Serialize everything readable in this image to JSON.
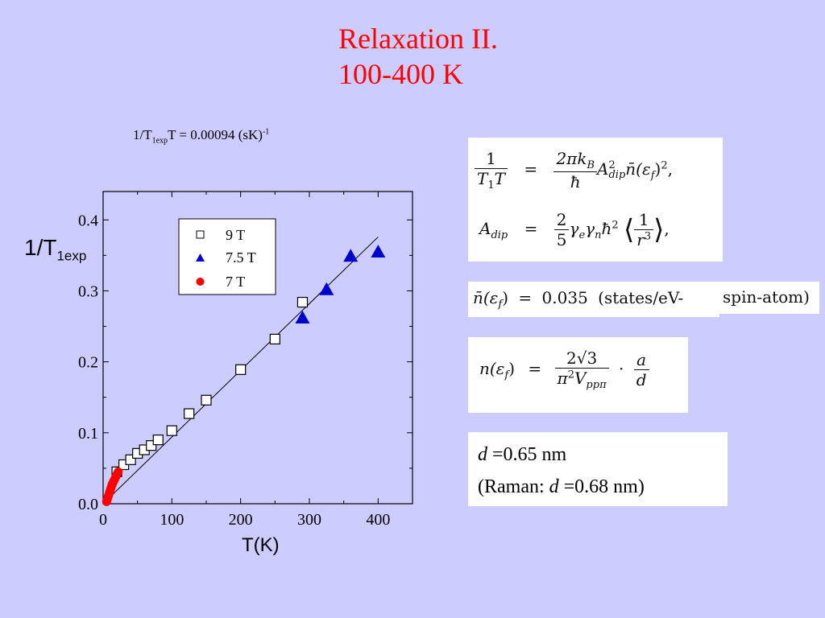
{
  "slide": {
    "title_line1": "Relaxation II.",
    "title_line2": "100-400 K",
    "formula_label": {
      "prefix": "1/T",
      "sub": "1exp",
      "mid": "T = 0.00094 (sK)",
      "sup": "-1"
    },
    "ylabel_main": "1/T",
    "ylabel_sub": "1exp",
    "xlabel": "T(K)"
  },
  "chart_data": {
    "type": "scatter",
    "xlim": [
      0,
      450
    ],
    "ylim": [
      0,
      0.44
    ],
    "x_ticks": [
      0,
      100,
      200,
      300,
      400
    ],
    "x_tick_labels": [
      "0",
      "100",
      "200",
      "300",
      "400"
    ],
    "y_ticks": [
      0.0,
      0.1,
      0.2,
      0.3,
      0.4
    ],
    "y_tick_labels": [
      "0.0",
      "0.1",
      "0.2",
      "0.3",
      "0.4"
    ],
    "grid": false,
    "legend_position": "top-center",
    "series": [
      {
        "name": "9 T",
        "marker": "open-square",
        "color": "#000000",
        "x": [
          20,
          30,
          40,
          50,
          60,
          70,
          80,
          100,
          125,
          150,
          200,
          250,
          290
        ],
        "y": [
          0.045,
          0.055,
          0.062,
          0.071,
          0.076,
          0.082,
          0.09,
          0.103,
          0.127,
          0.146,
          0.189,
          0.232,
          0.284
        ]
      },
      {
        "name": "7.5 T",
        "marker": "filled-triangle",
        "color": "#0000cc",
        "x": [
          290,
          325,
          360,
          400
        ],
        "y": [
          0.262,
          0.302,
          0.349,
          0.355
        ]
      },
      {
        "name": "7 T",
        "marker": "filled-circle",
        "color": "#ff0000",
        "x": [
          5,
          6,
          7,
          8,
          9,
          10,
          11,
          12,
          13,
          14,
          15,
          16,
          17,
          18,
          19,
          20,
          21,
          22
        ],
        "y": [
          0.003,
          0.006,
          0.009,
          0.012,
          0.015,
          0.018,
          0.021,
          0.024,
          0.027,
          0.029,
          0.031,
          0.033,
          0.035,
          0.037,
          0.039,
          0.041,
          0.043,
          0.045
        ]
      }
    ],
    "fit_line": {
      "x": [
        0,
        400
      ],
      "y": [
        0,
        0.376
      ]
    }
  },
  "equations": {
    "eq1": {
      "num": "1",
      "den": "T",
      "den_sub": "1",
      "den_tail": "T",
      "eq": "=",
      "rhs_num": "2πk",
      "rhs_num_sub": "B",
      "rhs_den": "ħ",
      "rhs_tail": "A",
      "rhs_tail_sup": "2",
      "rhs_tail_sub": "dip",
      "rhs_n": "n̄(ε",
      "rhs_n_sub": "f",
      "rhs_end": ")",
      "rhs_end_sup": "2",
      "rhs_comma": ","
    },
    "eq2": {
      "lhs": "A",
      "lhs_sub": "dip",
      "eq": "=",
      "frac_num": "2",
      "frac_den": "5",
      "gammas": "γ",
      "gamma_e": "e",
      "gamma_n_base": "γ",
      "gamma_n": "n",
      "hbar": "ħ",
      "hbar_sup": "2",
      "bracket_open": "⟨",
      "inner_num": "1",
      "inner_den": "r",
      "inner_den_sup": "3",
      "bracket_close": "⟩",
      "comma": ","
    },
    "eq3": {
      "lhs": "n̄(ε",
      "lhs_sub": "f",
      "lhs_end": ")",
      "eq": "=",
      "value": "0.035",
      "units": "(states/eV-",
      "units_tail": "spin-atom)"
    },
    "eq4": {
      "lhs": "n(ε",
      "lhs_sub": "f",
      "lhs_end": ")",
      "eq": "=",
      "num": "2√3",
      "den": "π",
      "den_sup": "2",
      "den_tail": "V",
      "den_tail_sub": "ppπ",
      "dot": "·",
      "frac2_num": "a",
      "frac2_den": "d"
    }
  },
  "d_values": {
    "line1_var": "d",
    "line1_value": " =0.65 nm",
    "line2_prefix": "(Raman: ",
    "line2_var": "d",
    "line2_value": " =0.68 nm)"
  }
}
